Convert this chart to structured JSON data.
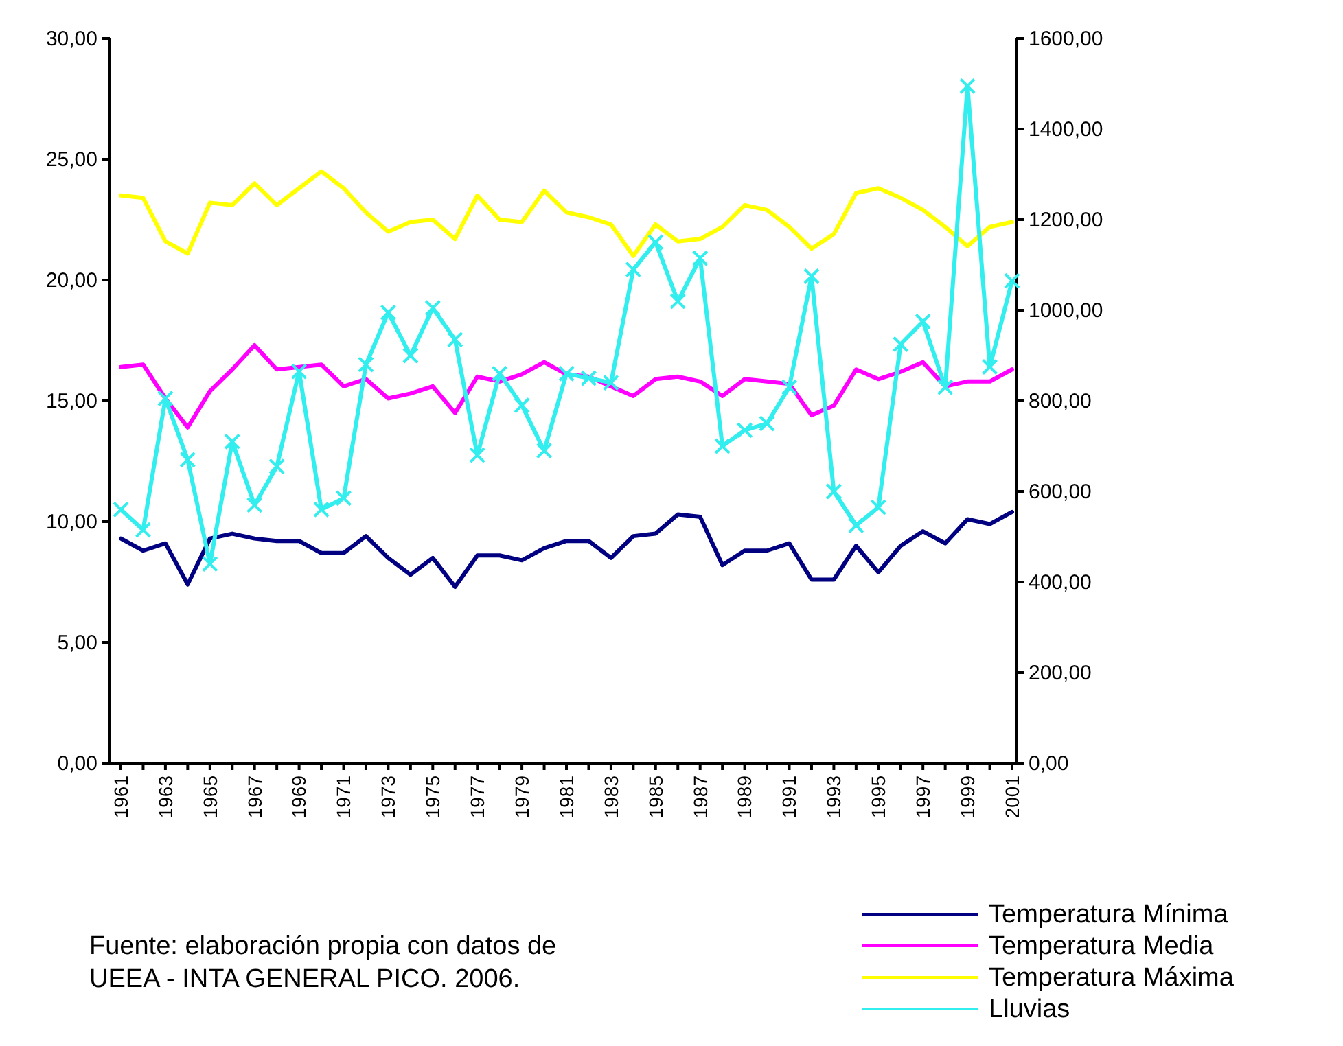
{
  "chart_data": {
    "type": "line",
    "categories": [
      "1961",
      null,
      "1963",
      null,
      "1965",
      null,
      "1967",
      null,
      "1969",
      null,
      "1971",
      null,
      "1973",
      null,
      "1975",
      null,
      "1977",
      null,
      "1979",
      null,
      "1981",
      null,
      "1983",
      null,
      "1985",
      null,
      "1987",
      null,
      "1989",
      null,
      "1991",
      null,
      "1993",
      null,
      "1995",
      null,
      "1997",
      null,
      "1999",
      null,
      "2001"
    ],
    "ylim": [
      0,
      30
    ],
    "yticks": [
      {
        "value": 0,
        "label": "0,00"
      },
      {
        "value": 5,
        "label": "5,00"
      },
      {
        "value": 10,
        "label": "10,00"
      },
      {
        "value": 15,
        "label": "15,00"
      },
      {
        "value": 20,
        "label": "20,00"
      },
      {
        "value": 25,
        "label": "25,00"
      },
      {
        "value": 30,
        "label": "30,00"
      }
    ],
    "y2lim": [
      0,
      1600
    ],
    "y2ticks": [
      {
        "value": 0,
        "label": "0,00"
      },
      {
        "value": 200,
        "label": "200,00"
      },
      {
        "value": 400,
        "label": "400,00"
      },
      {
        "value": 600,
        "label": "600,00"
      },
      {
        "value": 800,
        "label": "800,00"
      },
      {
        "value": 1000,
        "label": "1000,00"
      },
      {
        "value": 1200,
        "label": "1200,00"
      },
      {
        "value": 1400,
        "label": "1400,00"
      },
      {
        "value": 1600,
        "label": "1600,00"
      }
    ],
    "grid": false,
    "legend": "bottom right",
    "series": [
      {
        "name": "Temperatura Mínima",
        "color": "#000080",
        "marker": "none",
        "values": [
          9.3,
          8.8,
          9.1,
          7.4,
          9.3,
          9.5,
          9.3,
          9.2,
          9.2,
          8.7,
          8.7,
          9.4,
          8.5,
          7.8,
          8.5,
          7.3,
          8.6,
          8.6,
          8.4,
          8.9,
          9.2,
          9.2,
          8.5,
          9.4,
          9.5,
          10.3,
          10.2,
          8.2,
          8.8,
          8.8,
          9.1,
          7.6,
          7.6,
          9.0,
          7.9,
          9.0,
          9.6,
          9.1,
          10.1,
          9.9,
          10.4
        ]
      },
      {
        "name": "Temperatura Media",
        "color": "#ff00ff",
        "marker": "none",
        "values": [
          16.4,
          16.5,
          15.1,
          13.9,
          15.4,
          16.3,
          17.3,
          16.3,
          16.4,
          16.5,
          15.6,
          15.9,
          15.1,
          15.3,
          15.6,
          14.5,
          16.0,
          15.8,
          16.1,
          16.6,
          16.1,
          16.0,
          15.6,
          15.2,
          15.9,
          16.0,
          15.8,
          15.2,
          15.9,
          15.8,
          15.7,
          14.4,
          14.8,
          16.3,
          15.9,
          16.2,
          16.6,
          15.6,
          15.8,
          15.8,
          16.3
        ]
      },
      {
        "name": "Temperatura Máxima",
        "color": "#ffff00",
        "marker": "none",
        "values": [
          23.5,
          23.4,
          21.6,
          21.1,
          23.2,
          23.1,
          24.0,
          23.1,
          23.8,
          24.5,
          23.8,
          22.8,
          22.0,
          22.4,
          22.5,
          21.7,
          23.5,
          22.5,
          22.4,
          23.7,
          22.8,
          22.6,
          22.3,
          21.0,
          22.3,
          21.6,
          21.7,
          22.2,
          23.1,
          22.9,
          22.2,
          21.3,
          21.9,
          23.6,
          23.8,
          23.4,
          22.9,
          22.2,
          21.4,
          22.2,
          22.4
        ]
      },
      {
        "name": "Lluvias",
        "color": "#33eeee",
        "marker": "cross",
        "axis": "y2",
        "values": [
          560,
          515,
          805,
          670,
          440,
          710,
          570,
          655,
          865,
          560,
          585,
          880,
          995,
          900,
          1005,
          935,
          680,
          860,
          790,
          690,
          860,
          850,
          840,
          1090,
          1150,
          1020,
          1115,
          700,
          735,
          750,
          830,
          1075,
          600,
          525,
          565,
          925,
          975,
          830,
          1495,
          875,
          1065
        ]
      }
    ],
    "annotations": [
      "Fuente: elaboración propia con datos de\nUEEA - INTA GENERAL PICO. 2006."
    ]
  }
}
